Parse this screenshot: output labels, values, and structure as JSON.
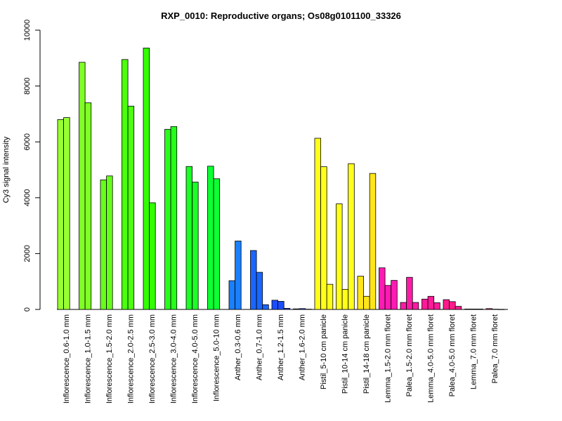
{
  "chart_data": {
    "type": "bar",
    "title": "RXP_0010: Reproductive organs; Os08g0101100_33326",
    "xlabel": "",
    "ylabel": "Cy3 signal intensity",
    "ylim": [
      0,
      10000
    ],
    "yticks": [
      0,
      2000,
      4000,
      6000,
      8000,
      10000
    ],
    "grid": false,
    "legend": "none",
    "categories": [
      "Inflorescence_0.6-1.0 mm",
      "Inflorescence_1.0-1.5 mm",
      "Inflorescence_1.5-2.0 mm",
      "Inflorescence_2.0-2.5 mm",
      "Inflorescence_2.5-3.0 mm",
      "Inflorescence_3.0-4.0 mm",
      "Inflorescence_4.0-5.0 mm",
      "Inflorescence_5.0-10 mm",
      "Anther_0.3-0.6 mm",
      "Anther_0.7-1.0 mm",
      "Anther_1.2-1.5 mm",
      "Anther_1.6-2.0 mm",
      "Pistil_5-10 cm panicle",
      "Pistil_10-14 cm panicle",
      "Pistil_14-18 cm panicle",
      "Lemma_1.5-2.0 mm floret",
      "Palea_1.5-2.0 mm floret",
      "Lemma_4.0-5.0 mm floret",
      "Palea_4.0-5.0 mm floret",
      "Lemma_7.0 mm floret",
      "Palea_7.0 mm floret"
    ],
    "groups": [
      {
        "color": "#99ff33",
        "values": [
          6800,
          6870
        ]
      },
      {
        "color": "#80ff26",
        "values": [
          8850,
          7400
        ]
      },
      {
        "color": "#66ff1a",
        "values": [
          4640,
          4780
        ]
      },
      {
        "color": "#4dff0d",
        "values": [
          8950,
          7280
        ]
      },
      {
        "color": "#33ff00",
        "values": [
          9360,
          3820
        ]
      },
      {
        "color": "#26ff1a",
        "values": [
          6450,
          6550
        ]
      },
      {
        "color": "#1aff26",
        "values": [
          5120,
          4560
        ]
      },
      {
        "color": "#0dff33",
        "values": [
          5130,
          4680
        ]
      },
      {
        "color": "#1a80ff",
        "values": [
          1030,
          2450
        ]
      },
      {
        "color": "#1a66ff",
        "values": [
          2110,
          1330,
          170
        ]
      },
      {
        "color": "#1a4dff",
        "values": [
          330,
          290,
          40
        ]
      },
      {
        "color": "#1a33ff",
        "values": [
          20,
          30,
          10
        ]
      },
      {
        "color": "#ffff1a",
        "values": [
          6130,
          5110,
          900
        ]
      },
      {
        "color": "#ffff1a",
        "values": [
          3780,
          720,
          5220
        ]
      },
      {
        "color": "#ffe61a",
        "values": [
          1190,
          470,
          4870
        ]
      },
      {
        "color": "#ff1ab3",
        "values": [
          1490,
          860,
          1040
        ]
      },
      {
        "color": "#ff1aa6",
        "values": [
          250,
          1150,
          250
        ]
      },
      {
        "color": "#ff1a99",
        "values": [
          370,
          470,
          240
        ]
      },
      {
        "color": "#ff1a8c",
        "values": [
          350,
          280,
          110
        ]
      },
      {
        "color": "#ff1a80",
        "values": [
          15,
          15,
          15
        ]
      },
      {
        "color": "#ff1a73",
        "values": [
          30,
          10,
          5
        ]
      }
    ]
  }
}
